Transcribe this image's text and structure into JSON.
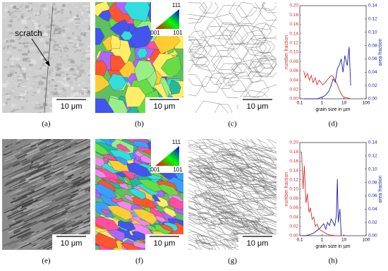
{
  "panels": [
    {
      "caption": "(a)",
      "scale_bar": "10 μm",
      "annotation": "scratch"
    },
    {
      "caption": "(b)",
      "scale_bar": "10 μm",
      "ipf_key": {
        "top": "111",
        "left": "001",
        "right": "101"
      }
    },
    {
      "caption": "(c)",
      "scale_bar": "10 μm"
    },
    {
      "caption": "(e)",
      "scale_bar": "10 μm"
    },
    {
      "caption": "(f)",
      "scale_bar": "10 μm",
      "ipf_key": {
        "top": "111",
        "left": "001",
        "right": "101"
      }
    },
    {
      "caption": "(g)",
      "scale_bar": "10 μm"
    }
  ],
  "chart_data": [
    {
      "type": "line",
      "caption": "(d)",
      "xlabel": "grain size in µm",
      "ylabel": "number fraction",
      "y2label": "area fraction",
      "log_x": true,
      "xlim": [
        0.1,
        100
      ],
      "xticks": [
        0.1,
        1,
        10,
        100
      ],
      "ylim": [
        0,
        0.2
      ],
      "yticks": [
        {
          "value": 0,
          "label": "0.00"
        },
        0.02,
        0.04,
        0.06,
        0.08,
        {
          "value": 0.1,
          "label": "0.10"
        },
        0.12,
        0.14,
        0.16,
        0.18,
        {
          "value": 0.2,
          "label": "0.20"
        }
      ],
      "y2lim": [
        0,
        0.14
      ],
      "y2ticks": [
        {
          "value": 0,
          "label": "0.00"
        },
        0.02,
        0.04,
        0.06,
        0.08,
        {
          "value": 0.1,
          "label": "0.10"
        },
        0.12,
        0.14
      ],
      "x": [
        0.15,
        0.18,
        0.22,
        0.27,
        0.33,
        0.4,
        0.5,
        0.6,
        0.75,
        0.9,
        1.1,
        1.4,
        1.7,
        2.1,
        2.6,
        3.2,
        4,
        5,
        6,
        7.5,
        9,
        11,
        14,
        17,
        20
      ],
      "series": [
        {
          "name": "number fraction",
          "color": "#d03030",
          "values": [
            0.06,
            0.045,
            0.055,
            0.04,
            0.05,
            0.035,
            0.045,
            0.03,
            0.04,
            0.035,
            0.03,
            0.035,
            0.04,
            0.045,
            0.05,
            0.048,
            0.04,
            0.03,
            0.02,
            0.01,
            0.005,
            0.003,
            0.002,
            0.001,
            0
          ]
        },
        {
          "name": "area fraction",
          "color": "#2020a0",
          "axis": "y2",
          "values": [
            0,
            0,
            0,
            0,
            0,
            0,
            0,
            0,
            0.001,
            0.002,
            0.003,
            0.005,
            0.008,
            0.012,
            0.02,
            0.03,
            0.025,
            0.045,
            0.05,
            0.06,
            0.04,
            0.065,
            0.05,
            0.078,
            0.02
          ]
        }
      ]
    },
    {
      "type": "line",
      "caption": "(h)",
      "xlabel": "grain size in µm",
      "ylabel": "number fraction",
      "y2label": "area fraction",
      "log_x": true,
      "xlim": [
        0.1,
        100
      ],
      "xticks": [
        0.1,
        1,
        10,
        100
      ],
      "ylim": [
        0,
        0.2
      ],
      "yticks": [
        {
          "value": 0,
          "label": "0.00"
        },
        0.02,
        0.04,
        0.06,
        0.08,
        {
          "value": 0.1,
          "label": "0.10"
        },
        0.12,
        0.14,
        0.16,
        0.18,
        {
          "value": 0.2,
          "label": "0.20"
        }
      ],
      "y2lim": [
        0,
        0.14
      ],
      "y2ticks": [
        {
          "value": 0,
          "label": "0.00"
        },
        0.02,
        0.04,
        0.06,
        0.08,
        {
          "value": 0.1,
          "label": "0.10"
        },
        0.12,
        0.14
      ],
      "x": [
        0.12,
        0.14,
        0.16,
        0.19,
        0.22,
        0.26,
        0.3,
        0.36,
        0.43,
        0.5,
        0.6,
        0.72,
        0.86,
        1,
        1.2,
        1.5,
        1.8,
        2.2,
        2.6,
        3.2,
        3.8,
        4.5,
        5,
        5.5,
        6.5,
        7.5
      ],
      "series": [
        {
          "name": "number fraction",
          "color": "#d03030",
          "values": [
            0.18,
            0.1,
            0.15,
            0.07,
            0.09,
            0.05,
            0.06,
            0.035,
            0.04,
            0.02,
            0.025,
            0.015,
            0.012,
            0.01,
            0.008,
            0.005,
            0.003,
            0.002,
            0.001,
            0.001,
            0,
            0,
            0,
            0,
            0,
            0
          ]
        },
        {
          "name": "area fraction",
          "color": "#2020a0",
          "axis": "y2",
          "values": [
            0,
            0,
            0,
            0,
            0.001,
            0.001,
            0.002,
            0.003,
            0.004,
            0.006,
            0.008,
            0.01,
            0.012,
            0.015,
            0.018,
            0.01,
            0.02,
            0.015,
            0.025,
            0.02,
            0.015,
            0.03,
            0.085,
            0.02,
            0.04,
            0
          ]
        }
      ]
    }
  ]
}
